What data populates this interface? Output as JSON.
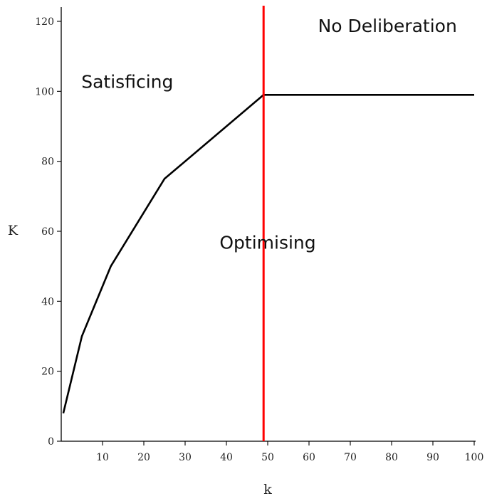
{
  "chart_data": {
    "type": "line",
    "xlabel": "k",
    "ylabel": "K",
    "xlim": [
      0,
      100
    ],
    "ylim": [
      0,
      120
    ],
    "xticks": [
      10,
      20,
      30,
      40,
      50,
      60,
      70,
      80,
      90,
      100
    ],
    "yticks": [
      0,
      20,
      40,
      60,
      80,
      100,
      120
    ],
    "grid": false,
    "series": [
      {
        "color": "#000000",
        "x": [
          0.5,
          5,
          12,
          25,
          49,
          100
        ],
        "y": [
          8,
          30,
          50,
          75,
          99,
          99
        ]
      }
    ],
    "vline": {
      "x": 49,
      "color": "#ff0000"
    },
    "annotations": [
      {
        "text": "No Deliberation",
        "x": 79,
        "y": 117
      },
      {
        "text": "Satisficing",
        "x": 16,
        "y": 101
      },
      {
        "text": "Optimising",
        "x": 50,
        "y": 55
      }
    ]
  }
}
